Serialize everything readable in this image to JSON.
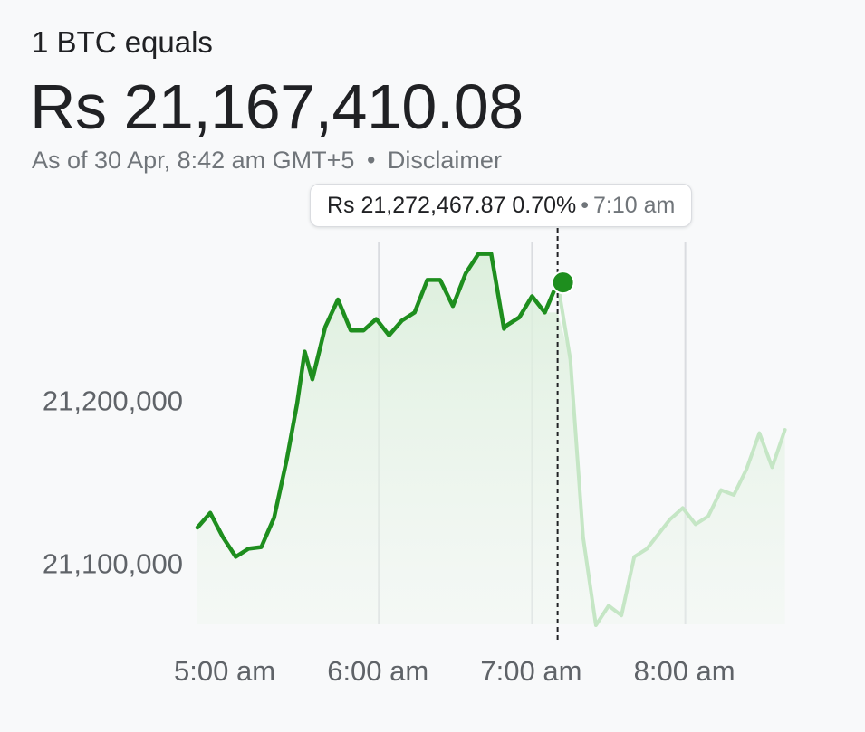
{
  "header": {
    "subtitle": "1 BTC equals",
    "price": "Rs 21,167,410.08",
    "as_of": "As of 30 Apr, 8:42 am GMT+5",
    "separator": "•",
    "disclaimer": "Disclaimer"
  },
  "tooltip": {
    "price": "Rs 21,272,467.87",
    "change": "0.70%",
    "separator": "•",
    "time": "7:10 am"
  },
  "colors": {
    "line": "#1e8e1e",
    "line_faded": "#c5e6c5",
    "fill": "#e3f2e3",
    "gridline": "#dadce0",
    "crosshair": "#202124"
  },
  "chart_data": {
    "type": "line",
    "title": "",
    "xlabel": "",
    "ylabel": "",
    "x_ticks": [
      "5:00 am",
      "6:00 am",
      "7:00 am",
      "8:00 am"
    ],
    "y_ticks": [
      {
        "value": 21100000,
        "label": "21,100,000"
      },
      {
        "value": 21200000,
        "label": "21,200,000"
      }
    ],
    "ylim": [
      21062000,
      21297000
    ],
    "grid": true,
    "highlight_time": "7:10 am",
    "highlight_value": 21272467.87,
    "series": [
      {
        "x_minutes_after_4am": [
          49,
          54,
          59,
          64,
          69,
          74,
          79,
          84,
          88,
          91,
          94,
          99,
          104,
          109,
          114,
          119,
          124,
          129,
          134,
          139,
          144,
          149,
          154,
          159,
          164,
          169,
          170,
          175,
          180,
          185,
          190,
          195,
          200,
          205,
          210,
          215,
          220,
          225,
          229,
          234,
          239,
          244,
          249,
          254,
          259,
          264,
          269,
          274,
          279
        ],
        "values": [
          21122000,
          21131000,
          21116000,
          21104000,
          21109000,
          21110000,
          21128000,
          21164000,
          21198000,
          21230000,
          21213000,
          21245000,
          21262000,
          21243000,
          21243000,
          21250000,
          21240000,
          21249000,
          21254000,
          21274000,
          21274000,
          21258000,
          21278000,
          21290000,
          21290000,
          21244000,
          21246000,
          21251000,
          21264000,
          21254000,
          21254000,
          21225000,
          21116000,
          21062000,
          21074000,
          21068000,
          21104000,
          21109000,
          21117000,
          21127000,
          21134000,
          21124000,
          21129000,
          21145000,
          21142000,
          21158000,
          21180000,
          21159000,
          21182000
        ]
      }
    ]
  }
}
